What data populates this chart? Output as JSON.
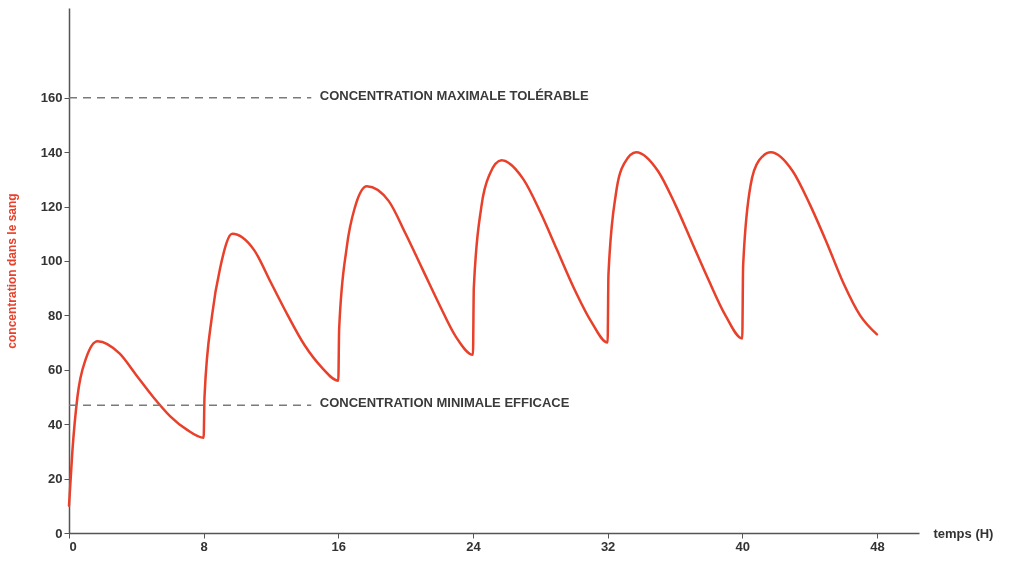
{
  "chart_data": {
    "type": "line",
    "xlabel": "temps (H)",
    "ylabel": "concentration dans le sang",
    "xlim": [
      0,
      50.5
    ],
    "ylim": [
      0,
      193
    ],
    "xticks": [
      0,
      8,
      16,
      24,
      32,
      40,
      48
    ],
    "yticks": [
      0,
      20,
      40,
      60,
      80,
      100,
      120,
      140,
      160
    ],
    "grid": false,
    "marker": "none",
    "line_style": "solid",
    "series": [
      {
        "color": "#e8402a",
        "x": [
          0,
          0.2,
          0.5,
          1,
          1.7,
          3,
          4,
          5,
          6,
          7,
          8,
          8.05,
          8.5,
          9,
          9.7,
          11,
          12,
          13,
          14,
          15,
          16,
          16.05,
          16.5,
          17,
          17.7,
          19,
          20,
          21,
          22,
          23,
          24,
          24.05,
          24.5,
          25,
          25.7,
          27,
          28,
          29,
          30,
          31,
          32,
          32.05,
          32.5,
          33,
          33.7,
          35,
          36,
          37,
          38,
          39,
          40,
          40.05,
          40.5,
          41,
          41.7,
          43,
          44,
          45,
          46,
          47,
          48
        ],
        "values": [
          10,
          30,
          50,
          64,
          70.5,
          66,
          58,
          50,
          43,
          38,
          35,
          50,
          80,
          98,
          110,
          104,
          92,
          80,
          69,
          61,
          56,
          75,
          105,
          120,
          127.5,
          122,
          110,
          97,
          84,
          72,
          65.5,
          90,
          120,
          132,
          137,
          130,
          118,
          104,
          90,
          78,
          70,
          95,
          125,
          136,
          140,
          133,
          121,
          107,
          93,
          80,
          71.5,
          98,
          128,
          137,
          140,
          133,
          121,
          107,
          92,
          80,
          73
        ]
      }
    ],
    "ref_lines": [
      {
        "axis": "y",
        "value": 160,
        "label": "CONCENTRATION MAXIMALE TOLÉRABLE",
        "color": "#7a7a7a",
        "line_style": "dashed"
      },
      {
        "axis": "y",
        "value": 47,
        "label": "CONCENTRATION MINIMALE EFFICACE",
        "color": "#7a7a7a",
        "line_style": "dashed"
      }
    ]
  }
}
